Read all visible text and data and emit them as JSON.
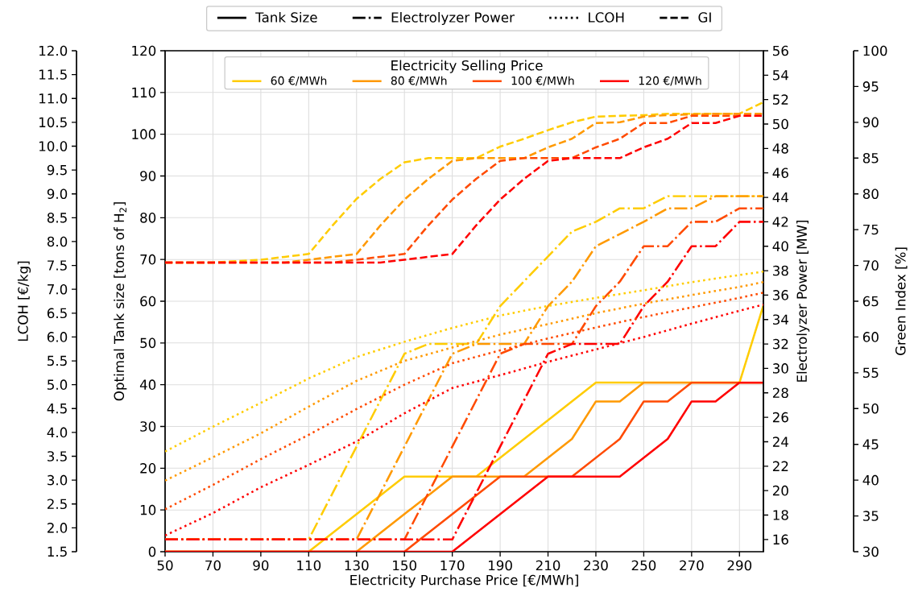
{
  "chart_data": [
    {
      "type": "line",
      "xlabel": "Electricity Purchase Price [€/MWh]",
      "ylabel": "Optimal Tank size [tons of H$_{2}$]",
      "y2label": "Electrolyzer Power [MW]",
      "y3label": "LCOH [€/kg]",
      "legend_title": "Electricity Selling Price",
      "legend": "top",
      "grid": true,
      "xlim": [
        50,
        300
      ],
      "xticks": [
        50,
        70,
        90,
        110,
        130,
        150,
        170,
        190,
        210,
        230,
        250,
        270,
        290
      ],
      "ylim": [
        0,
        120
      ],
      "yticks": [
        0,
        10,
        20,
        30,
        40,
        50,
        60,
        70,
        80,
        90,
        100,
        110,
        120
      ],
      "y2lim": [
        15,
        56
      ],
      "y2ticks": [
        16,
        18,
        20,
        22,
        24,
        26,
        28,
        30,
        32,
        34,
        36,
        38,
        40,
        42,
        44,
        46,
        48,
        50,
        52,
        54,
        56
      ],
      "y3lim": [
        1.5,
        12
      ],
      "y3ticks": [
        {
          "value": 1.5,
          "label": "1.5"
        },
        {
          "value": 2,
          "label": "2.0"
        },
        {
          "value": 2.5,
          "label": "2.5"
        },
        {
          "value": 3,
          "label": "3.0"
        },
        {
          "value": 3.5,
          "label": "3.5"
        },
        {
          "value": 4,
          "label": "4.0"
        },
        {
          "value": 4.5,
          "label": "4.5"
        },
        {
          "value": 5,
          "label": "5.0"
        },
        {
          "value": 5.5,
          "label": "5.5"
        },
        {
          "value": 6,
          "label": "6.0"
        },
        {
          "value": 6.5,
          "label": "6.5"
        },
        {
          "value": 7,
          "label": "7.0"
        },
        {
          "value": 7.5,
          "label": "7.5"
        },
        {
          "value": 8,
          "label": "8.0"
        },
        {
          "value": 8.5,
          "label": "8.5"
        },
        {
          "value": 9,
          "label": "9.0"
        },
        {
          "value": 9.5,
          "label": "9.5"
        },
        {
          "value": 10,
          "label": "10.0"
        },
        {
          "value": 10.5,
          "label": "10.5"
        },
        {
          "value": 11,
          "label": "11.0"
        },
        {
          "value": 11.5,
          "label": "11.5"
        },
        {
          "value": 12,
          "label": "12.0"
        }
      ],
      "series": [
        {
          "name": "60 €/MWh",
          "color": "#ffcc00",
          "line_style": "solid",
          "x": [
            50,
            110,
            150,
            180,
            230,
            290,
            300
          ],
          "values": [
            0,
            0,
            18,
            18,
            40.5,
            40.5,
            59
          ]
        },
        {
          "name": "80 €/MWh",
          "color": "#ff9900",
          "line_style": "solid",
          "x": [
            50,
            130,
            170,
            200,
            220,
            230,
            240,
            250,
            300
          ],
          "values": [
            0,
            0,
            18,
            18,
            27,
            36,
            36,
            40.5,
            40.5
          ]
        },
        {
          "name": "100 €/MWh",
          "color": "#ff4a00",
          "line_style": "solid",
          "x": [
            50,
            150,
            190,
            220,
            240,
            250,
            260,
            270,
            300
          ],
          "values": [
            0,
            0,
            18,
            18,
            27,
            36,
            36,
            40.5,
            40.5
          ]
        },
        {
          "name": "120 €/MWh",
          "color": "#ff0000",
          "line_style": "solid",
          "x": [
            50,
            170,
            210,
            240,
            260,
            270,
            280,
            290,
            300
          ],
          "values": [
            0,
            0,
            18,
            18,
            27,
            36,
            36,
            40.5,
            40.5
          ]
        },
        {
          "color": "#ffcc00",
          "line_style": "dashdot",
          "axis": "y2",
          "x": [
            50,
            110,
            150,
            160,
            180,
            190,
            220,
            230,
            240,
            250,
            260,
            300
          ],
          "values": [
            16,
            16,
            31.2,
            32,
            32,
            35.1,
            41.2,
            42,
            43.1,
            43.1,
            44.1,
            44.1
          ]
        },
        {
          "color": "#ff9900",
          "line_style": "dashdot",
          "axis": "y2",
          "x": [
            50,
            130,
            170,
            180,
            200,
            210,
            220,
            230,
            240,
            250,
            260,
            270,
            280,
            300
          ],
          "values": [
            16,
            16,
            31.2,
            32,
            32,
            35.1,
            37.1,
            40,
            41,
            42,
            43.1,
            43.1,
            44.1,
            44.1
          ]
        },
        {
          "color": "#ff4a00",
          "line_style": "dashdot",
          "axis": "y2",
          "x": [
            50,
            150,
            190,
            200,
            220,
            230,
            240,
            250,
            260,
            270,
            280,
            290,
            300
          ],
          "values": [
            16,
            16,
            31.2,
            32,
            32,
            35.1,
            37.1,
            40,
            40,
            42,
            42,
            43.1,
            43.1
          ]
        },
        {
          "color": "#ff0000",
          "line_style": "dashdot",
          "axis": "y2",
          "x": [
            50,
            170,
            210,
            220,
            240,
            250,
            260,
            270,
            280,
            290,
            300
          ],
          "values": [
            16,
            16,
            31.2,
            32,
            32,
            35.1,
            37.1,
            40,
            40,
            42,
            42
          ]
        },
        {
          "color": "#ffcc00",
          "line_style": "dotted",
          "axis": "y3",
          "x": [
            50,
            70,
            90,
            110,
            130,
            150,
            170,
            190,
            210,
            230,
            250,
            270,
            290,
            300
          ],
          "values": [
            3.6,
            4.12,
            4.62,
            5.13,
            5.58,
            5.9,
            6.19,
            6.45,
            6.65,
            6.82,
            6.98,
            7.15,
            7.3,
            7.37
          ]
        },
        {
          "color": "#ff9900",
          "line_style": "dotted",
          "axis": "y3",
          "x": [
            50,
            70,
            90,
            110,
            130,
            150,
            170,
            190,
            210,
            230,
            250,
            270,
            290,
            300
          ],
          "values": [
            2.99,
            3.48,
            3.98,
            4.54,
            5.08,
            5.5,
            5.78,
            6.05,
            6.27,
            6.5,
            6.7,
            6.88,
            7.05,
            7.15
          ]
        },
        {
          "color": "#ff4a00",
          "line_style": "dotted",
          "axis": "y3",
          "x": [
            50,
            70,
            90,
            110,
            130,
            150,
            170,
            190,
            210,
            230,
            250,
            270,
            290,
            300
          ],
          "values": [
            2.39,
            2.9,
            3.44,
            3.95,
            4.49,
            5.0,
            5.45,
            5.72,
            5.97,
            6.2,
            6.42,
            6.62,
            6.82,
            6.93
          ]
        },
        {
          "color": "#ff0000",
          "line_style": "dotted",
          "axis": "y3",
          "x": [
            50,
            70,
            90,
            110,
            130,
            150,
            170,
            190,
            210,
            230,
            250,
            270,
            290,
            300
          ],
          "values": [
            1.84,
            2.31,
            2.85,
            3.32,
            3.81,
            4.4,
            4.93,
            5.2,
            5.48,
            5.74,
            6.0,
            6.28,
            6.55,
            6.68
          ]
        },
        {
          "name": "Tank Size",
          "color": "#000000",
          "line_style": "solid"
        },
        {
          "name": "Electrolyzer Power",
          "color": "#000000",
          "line_style": "dashdot"
        },
        {
          "name": "LCOH",
          "color": "#000000",
          "line_style": "dotted"
        },
        {
          "name": "GI",
          "color": "#000000",
          "line_style": "dashed"
        }
      ]
    },
    {
      "type": "line",
      "ylabel": "Green Index [%]",
      "tick_labels": "y",
      "xlim": [
        50,
        300
      ],
      "ylim": [
        30,
        100
      ],
      "yticks": [
        30,
        35,
        40,
        45,
        50,
        55,
        60,
        65,
        70,
        75,
        80,
        85,
        90,
        95,
        100
      ],
      "series": [
        {
          "color": "#ffcc00",
          "line_style": "dashed",
          "x": [
            50,
            70,
            80,
            90,
            100,
            110,
            120,
            130,
            140,
            150,
            160,
            180,
            190,
            200,
            210,
            220,
            230,
            250,
            260,
            290,
            300
          ],
          "values": [
            70.4,
            70.4,
            70.6,
            70.8,
            71.2,
            71.6,
            75.6,
            79.3,
            82.1,
            84.4,
            85,
            85,
            86.6,
            87.7,
            88.9,
            90,
            90.8,
            91,
            91.2,
            91.2,
            92.8
          ]
        },
        {
          "color": "#ff9900",
          "line_style": "dashed",
          "x": [
            50,
            100,
            110,
            120,
            130,
            140,
            150,
            160,
            170,
            180,
            200,
            210,
            220,
            230,
            240,
            250,
            260,
            280,
            300
          ],
          "values": [
            70.4,
            70.4,
            70.8,
            71.2,
            71.6,
            75.6,
            79.2,
            82.1,
            84.6,
            85,
            85,
            86.5,
            87.7,
            89.9,
            90,
            90.8,
            91,
            91.2,
            91.2
          ]
        },
        {
          "color": "#ff4a00",
          "line_style": "dashed",
          "x": [
            50,
            120,
            130,
            140,
            150,
            160,
            170,
            180,
            190,
            200,
            220,
            230,
            240,
            250,
            260,
            270,
            300
          ],
          "values": [
            70.4,
            70.4,
            70.8,
            71.2,
            71.6,
            75.6,
            79.2,
            82.1,
            84.6,
            85,
            85,
            86.5,
            87.7,
            89.9,
            89.9,
            90.9,
            90.9
          ]
        },
        {
          "color": "#ff0000",
          "line_style": "dashed",
          "x": [
            50,
            140,
            150,
            160,
            170,
            180,
            190,
            200,
            210,
            220,
            240,
            250,
            260,
            270,
            280,
            290,
            300
          ],
          "values": [
            70.4,
            70.4,
            70.8,
            71.2,
            71.6,
            75.6,
            79.2,
            82.1,
            84.6,
            85,
            85,
            86.5,
            87.7,
            89.9,
            89.9,
            90.9,
            90.9
          ]
        }
      ]
    }
  ]
}
